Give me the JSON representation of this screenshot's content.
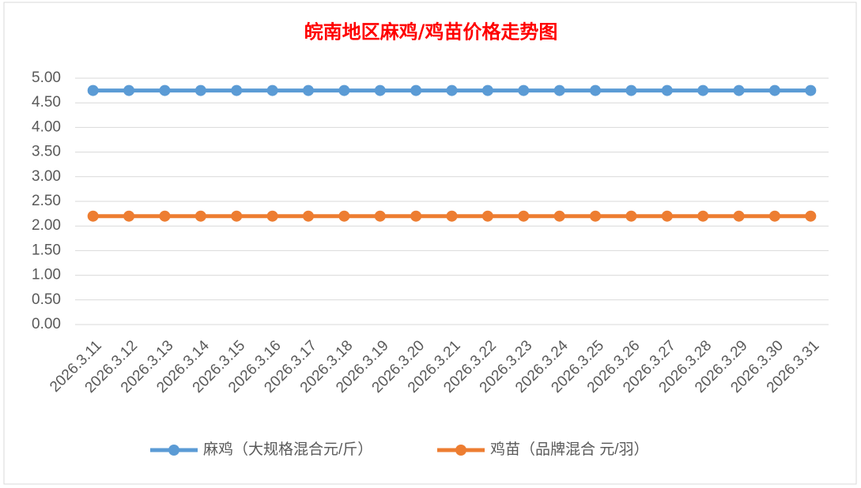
{
  "chart_data": {
    "type": "line",
    "title": "皖南地区麻鸡/鸡苗价格走势图",
    "categories": [
      "2026.3.11",
      "2026.3.12",
      "2026.3.13",
      "2026.3.14",
      "2026.3.15",
      "2026.3.16",
      "2026.3.17",
      "2026.3.18",
      "2026.3.19",
      "2026.3.20",
      "2026.3.21",
      "2026.3.22",
      "2026.3.23",
      "2026.3.24",
      "2026.3.25",
      "2026.3.26",
      "2026.3.27",
      "2026.3.28",
      "2026.3.29",
      "2026.3.30",
      "2026.3.31"
    ],
    "series": [
      {
        "name": "麻鸡（大规格混合元/斤）",
        "color": "#5b9bd5",
        "values": [
          4.75,
          4.75,
          4.75,
          4.75,
          4.75,
          4.75,
          4.75,
          4.75,
          4.75,
          4.75,
          4.75,
          4.75,
          4.75,
          4.75,
          4.75,
          4.75,
          4.75,
          4.75,
          4.75,
          4.75,
          4.75
        ]
      },
      {
        "name": "鸡苗（品牌混合 元/羽）",
        "color": "#ed7d31",
        "values": [
          2.2,
          2.2,
          2.2,
          2.2,
          2.2,
          2.2,
          2.2,
          2.2,
          2.2,
          2.2,
          2.2,
          2.2,
          2.2,
          2.2,
          2.2,
          2.2,
          2.2,
          2.2,
          2.2,
          2.2,
          2.2
        ]
      }
    ],
    "ylim": [
      0,
      5
    ],
    "yticks": [
      {
        "value": 0,
        "label": "0.00"
      },
      {
        "value": 0.5,
        "label": "0.50"
      },
      {
        "value": 1,
        "label": "1.00"
      },
      {
        "value": 1.5,
        "label": "1.50"
      },
      {
        "value": 2,
        "label": "2.00"
      },
      {
        "value": 2.5,
        "label": "2.50"
      },
      {
        "value": 3,
        "label": "3.00"
      },
      {
        "value": 3.5,
        "label": "3.50"
      },
      {
        "value": 4,
        "label": "4.00"
      },
      {
        "value": 4.5,
        "label": "4.50"
      },
      {
        "value": 5,
        "label": "5.00"
      }
    ],
    "grid": true,
    "legend": "bottom"
  }
}
